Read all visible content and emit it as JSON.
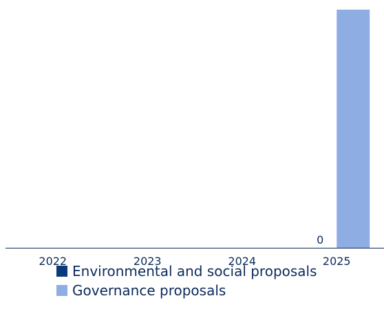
{
  "chart_data": {
    "type": "bar",
    "categories": [
      "2022",
      "2023",
      "2024",
      "2025"
    ],
    "series": [
      {
        "name": "Environmental and social proposals",
        "values": [
          null,
          null,
          null,
          0
        ],
        "color": "#0b3a7a"
      },
      {
        "name": "Governance proposals",
        "values": [
          null,
          null,
          null,
          1
        ],
        "color": "#8eaee3"
      }
    ],
    "data_labels": [
      {
        "series": 0,
        "category": "2025",
        "text": "0"
      }
    ],
    "ylim": [
      0,
      1
    ],
    "grid": false,
    "legend_position": "bottom",
    "axis_color": "#0b2a5b"
  }
}
